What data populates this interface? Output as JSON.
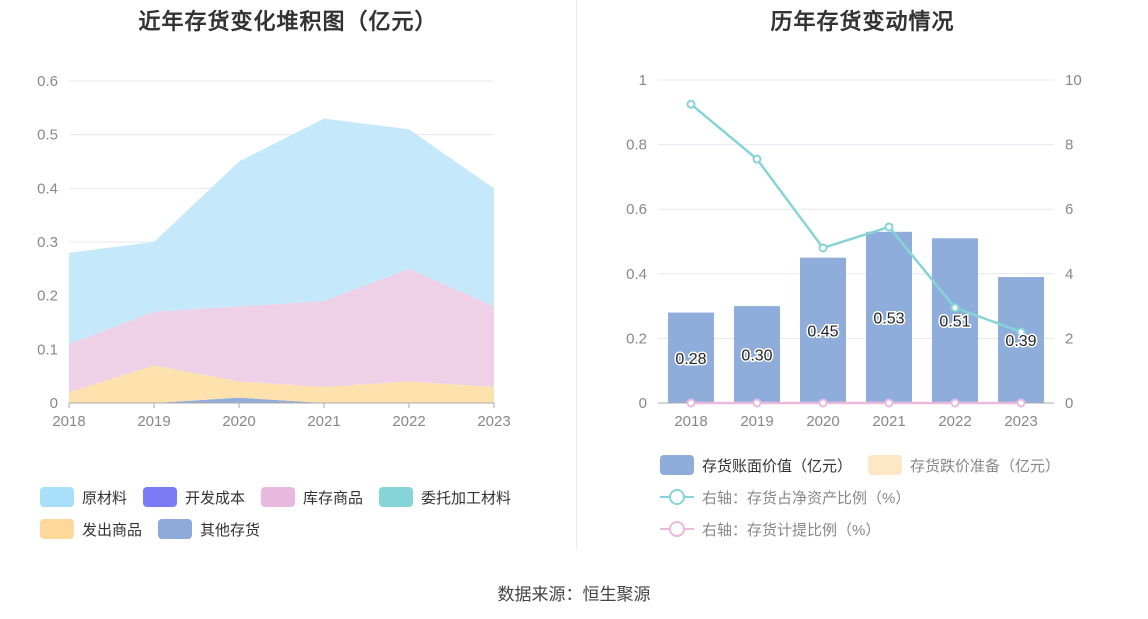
{
  "source": "数据来源：恒生聚源",
  "chart_data": [
    {
      "type": "area",
      "stacked": true,
      "title": "近年存货变化堆积图（亿元）",
      "categories": [
        "2018",
        "2019",
        "2020",
        "2021",
        "2022",
        "2023"
      ],
      "y_ticks": [
        "0",
        "0.1",
        "0.2",
        "0.3",
        "0.4",
        "0.5",
        "0.6"
      ],
      "ylim": [
        0,
        0.6
      ],
      "grid": true,
      "legend_position": "bottom",
      "series": [
        {
          "name": "其他存货",
          "color": "#8fa9d8",
          "values": [
            0,
            0,
            0.01,
            0,
            0,
            0
          ]
        },
        {
          "name": "发出商品",
          "color": "#fde0a9",
          "values": [
            0.02,
            0.07,
            0.03,
            0.03,
            0.04,
            0.03
          ]
        },
        {
          "name": "委托加工材料",
          "color": "#85d4d8",
          "values": [
            0,
            0,
            0,
            0,
            0,
            0
          ]
        },
        {
          "name": "库存商品",
          "color": "#edcde6",
          "values": [
            0.09,
            0.1,
            0.14,
            0.16,
            0.21,
            0.15
          ]
        },
        {
          "name": "开发成本",
          "color": "#7b7cf5",
          "values": [
            0,
            0,
            0,
            0,
            0,
            0
          ]
        },
        {
          "name": "原材料",
          "color": "#c2e8fa",
          "values": [
            0.17,
            0.13,
            0.27,
            0.34,
            0.26,
            0.22
          ]
        }
      ],
      "legend": [
        {
          "name": "原材料",
          "color": "#a7e0f8"
        },
        {
          "name": "开发成本",
          "color": "#7b7cf5"
        },
        {
          "name": "库存商品",
          "color": "#e8b9de"
        },
        {
          "name": "委托加工材料",
          "color": "#85d4d8"
        },
        {
          "name": "发出商品",
          "color": "#fdd89a"
        },
        {
          "name": "其他存货",
          "color": "#8fa9d8"
        }
      ]
    },
    {
      "type": "bar",
      "title": "历年存货变动情况",
      "categories": [
        "2018",
        "2019",
        "2020",
        "2021",
        "2022",
        "2023"
      ],
      "left_ticks": [
        "0",
        "0.2",
        "0.4",
        "0.6",
        "0.8",
        "1"
      ],
      "right_ticks": [
        "0",
        "2",
        "4",
        "6",
        "8",
        "10"
      ],
      "ylim_left": [
        0,
        1
      ],
      "ylim_right": [
        0,
        10
      ],
      "grid": true,
      "legend_position": "bottom",
      "series": [
        {
          "name": "存货账面价值（亿元）",
          "type": "bar",
          "axis": "left",
          "color": "#8eaddb",
          "values": [
            0.28,
            0.3,
            0.45,
            0.53,
            0.51,
            0.39
          ],
          "labels": [
            "0.28",
            "0.30",
            "0.45",
            "0.53",
            "0.51",
            "0.39"
          ]
        },
        {
          "name": "存货跌价准备（亿元）",
          "type": "bar",
          "axis": "left",
          "color": "#fde8c6",
          "values": [
            0,
            0,
            0,
            0,
            0,
            0
          ]
        },
        {
          "name": "右轴：存货占净资产比例（%）",
          "type": "line",
          "axis": "right",
          "color": "#86d3d8",
          "values": [
            9.25,
            7.55,
            4.8,
            5.45,
            2.95,
            2.2
          ]
        },
        {
          "name": "右轴：存货计提比例（%）",
          "type": "line",
          "axis": "right",
          "color": "#eab9dc",
          "values": [
            0,
            0,
            0,
            0,
            0,
            0
          ]
        }
      ]
    }
  ]
}
